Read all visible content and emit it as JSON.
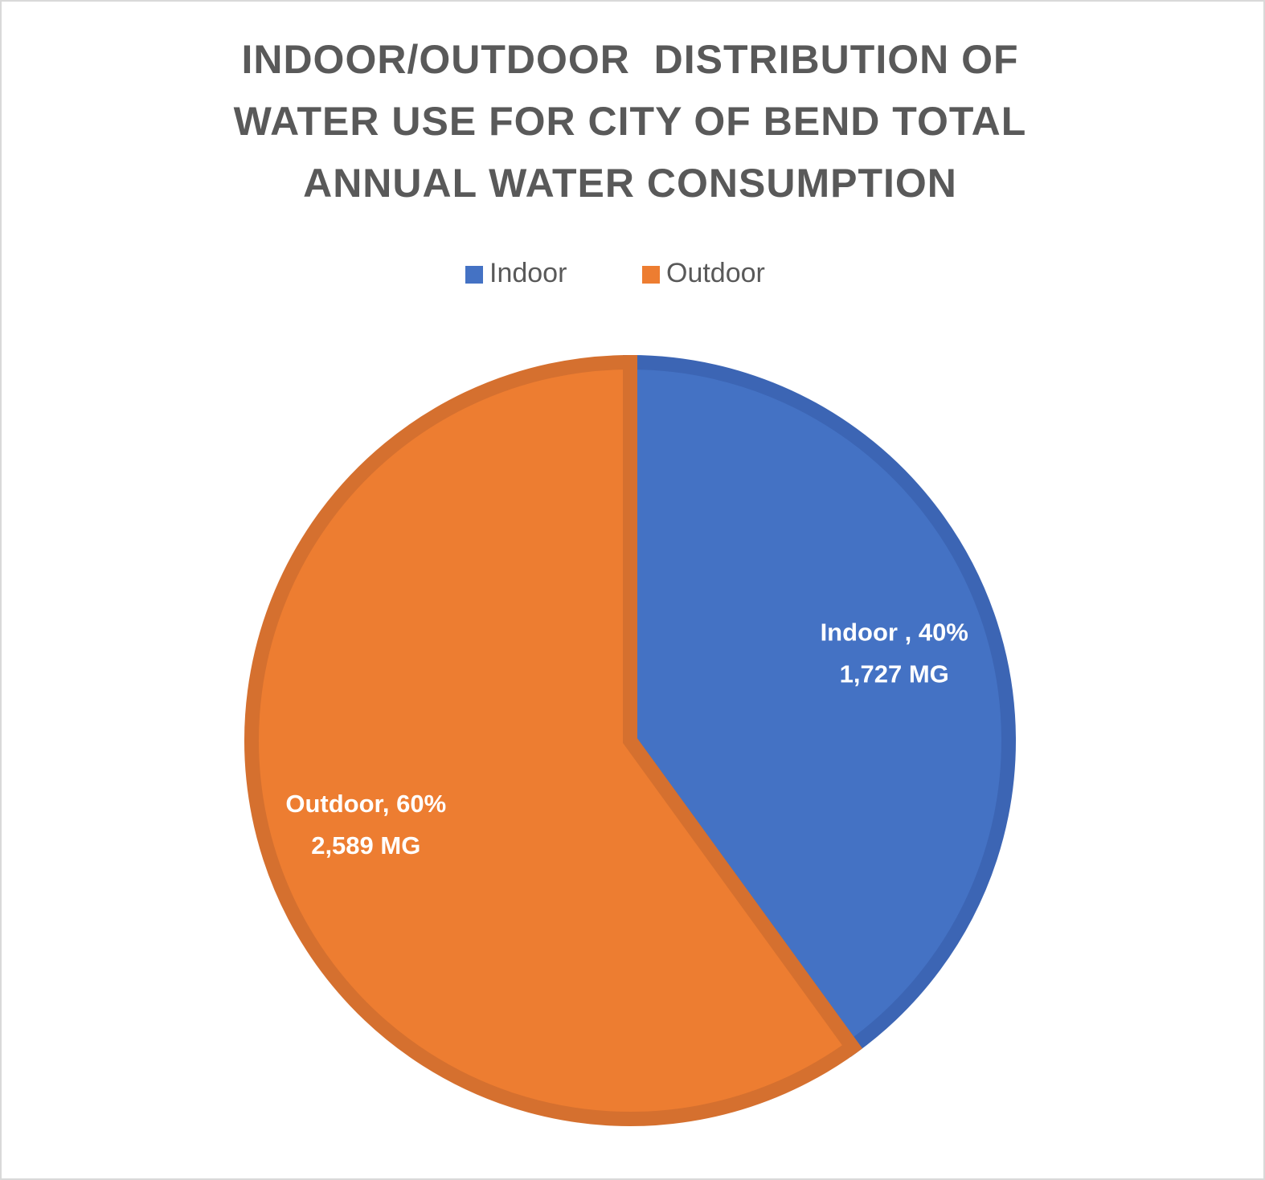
{
  "chart_data": {
    "type": "pie",
    "title": [
      "INDOOR/OUTDOOR  DISTRIBUTION OF",
      "WATER USE FOR CITY OF BEND TOTAL",
      "ANNUAL WATER CONSUMPTION"
    ],
    "categories": [
      "Indoor",
      "Outdoor"
    ],
    "values": [
      1727,
      2589
    ],
    "value_labels": [
      "1,727 MG",
      "2,589 MG"
    ],
    "percents": [
      40,
      60
    ],
    "percent_labels": [
      "Indoor , 40%",
      "Outdoor, 60%"
    ],
    "colors": [
      "#4472c4",
      "#ed7d31"
    ],
    "edge_colors": [
      "#3c65b4",
      "#d5702f"
    ],
    "legend": "top"
  }
}
